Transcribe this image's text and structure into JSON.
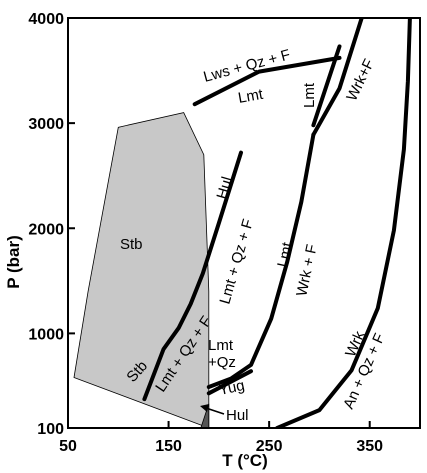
{
  "chart_data": {
    "type": "phase-diagram",
    "xlabel": "T (°C)",
    "ylabel": "P (bar)",
    "xlim": [
      50,
      400
    ],
    "ylim": [
      100,
      4000
    ],
    "x_ticks": [
      50,
      150,
      250,
      350
    ],
    "y_ticks": [
      100,
      1000,
      2000,
      3000,
      4000
    ],
    "fields": {
      "stb": {
        "label": "Stb",
        "color": "#c8c8c8",
        "T": [
          56,
          70,
          100,
          165,
          185,
          190,
          190
        ],
        "P": [
          580,
          1400,
          2960,
          3100,
          2700,
          1400,
          100
        ]
      },
      "hul": {
        "label": "Hul",
        "color": "#555555",
        "T": [
          182,
          190,
          190,
          184
        ],
        "P": [
          100,
          330,
          100,
          100
        ]
      }
    },
    "boundaries": [
      {
        "T": [
          126,
          145,
          160,
          172,
          184,
          200,
          222
        ],
        "P": [
          375,
          850,
          1050,
          1280,
          1570,
          2050,
          2720
        ]
      },
      {
        "T": [
          176,
          240,
          320
        ],
        "P": [
          3180,
          3490,
          3620
        ]
      },
      {
        "T": [
          294,
          320
        ],
        "P": [
          2980,
          3730
        ]
      },
      {
        "T": [
          294,
          320,
          342
        ],
        "P": [
          2890,
          3330,
          4000
        ]
      },
      {
        "T": [
          190,
          212,
          232,
          252,
          268,
          282,
          294
        ],
        "P": [
          490,
          570,
          700,
          1140,
          1680,
          2250,
          2890
        ]
      },
      {
        "T": [
          190,
          232
        ],
        "P": [
          430,
          640
        ]
      },
      {
        "T": [
          258,
          300,
          332,
          358,
          374,
          384,
          388,
          390
        ],
        "P": [
          100,
          270,
          650,
          1240,
          1980,
          2750,
          3400,
          4000
        ]
      }
    ],
    "labels": {
      "stb": "Stb",
      "lws_qz_f": "Lws + Qz + F",
      "lmt_top": "Lmt",
      "lmt_vertical": "Lmt",
      "wrk_f_top": "Wrk+F",
      "hul_upper": "Hul",
      "lmt_qz_f_upper": "Lmt + Qz + F",
      "lmt_mid": "Lmt",
      "wrk_f_mid": "Wrk + F",
      "stb_lower": "Stb",
      "lmt_qz_f_lower": "Lmt + Qz + F",
      "lmt_small": "Lmt",
      "qz_small": "+Qz",
      "yug": "Yug",
      "hul_arrow": "Hul",
      "wrk_lower": "Wrk",
      "an_qz_f": "An + Qz + F"
    }
  }
}
